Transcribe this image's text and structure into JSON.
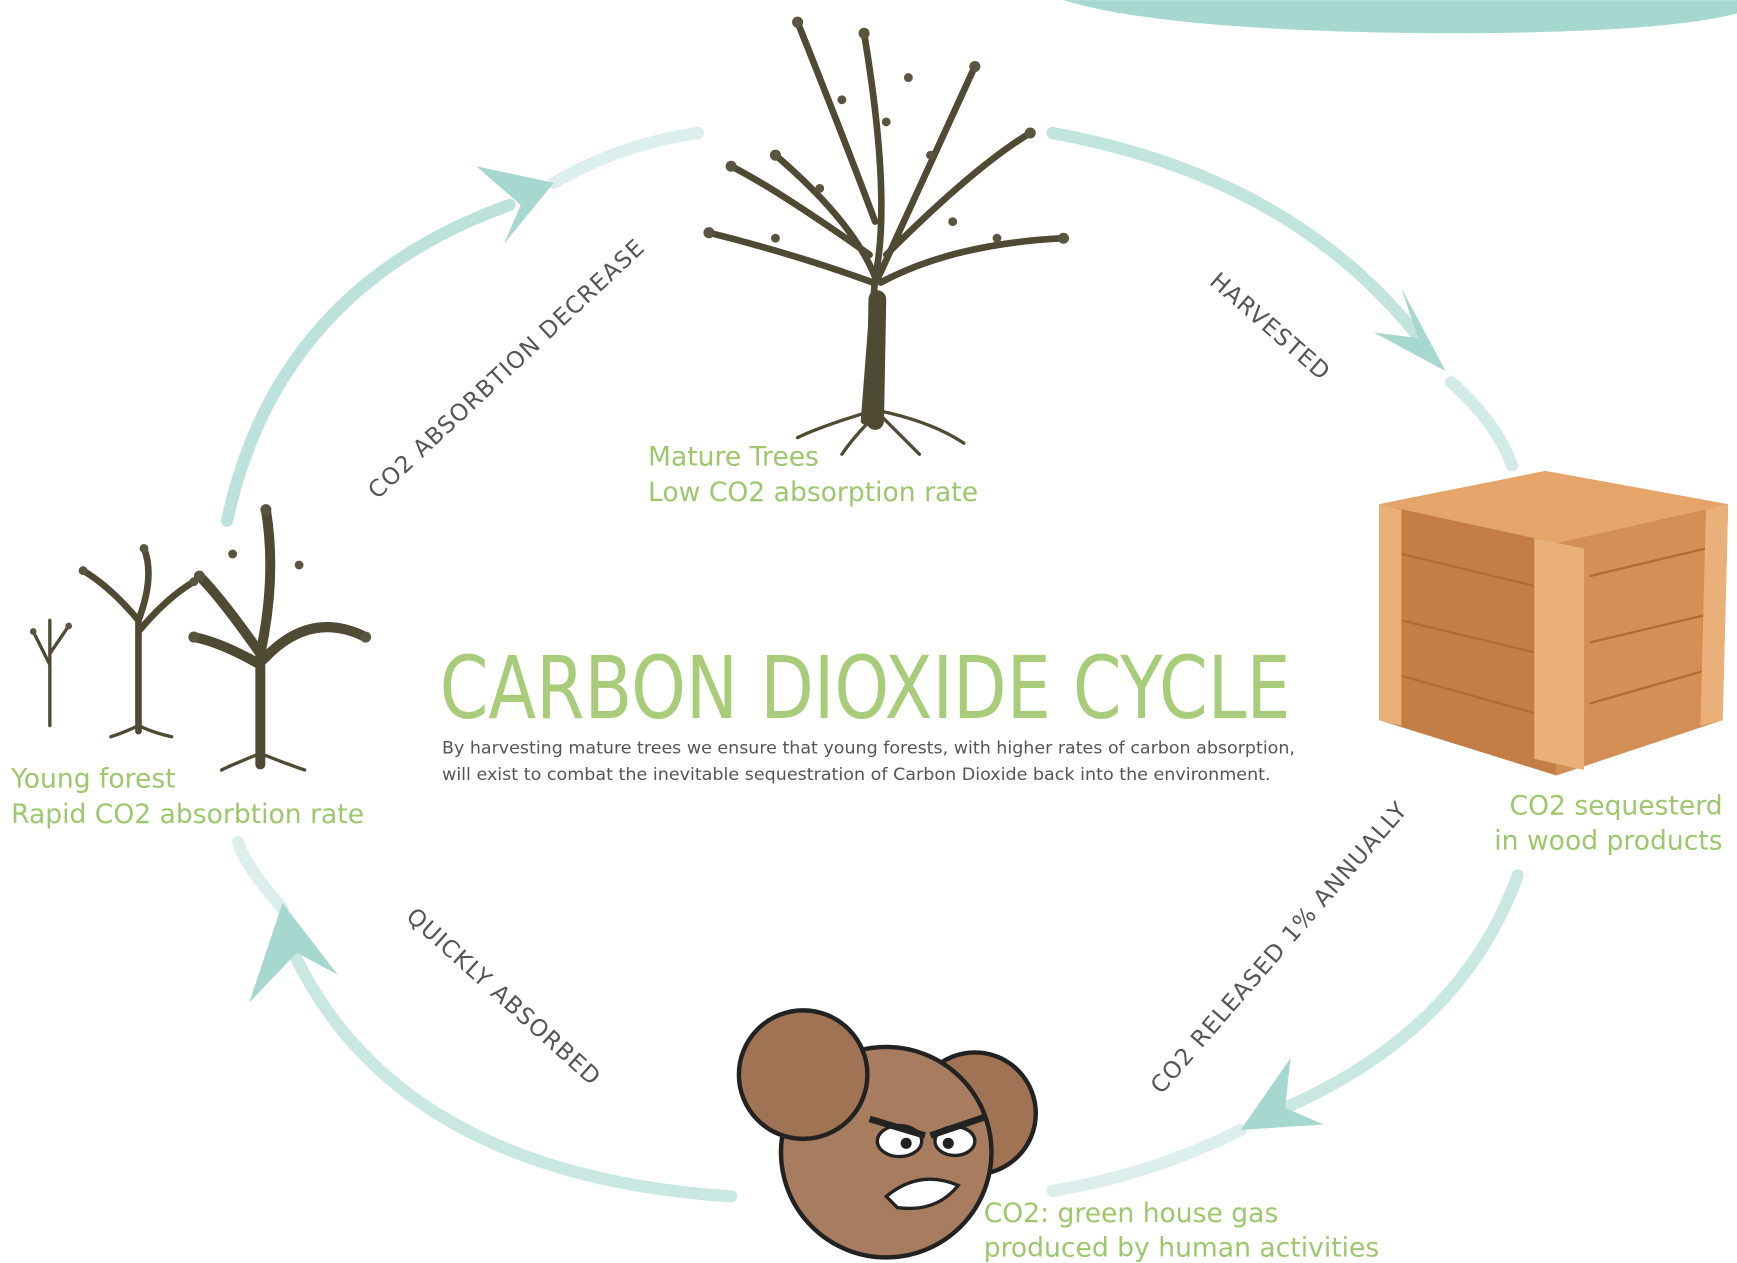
{
  "title": "CARBON DIOXIDE CYCLE",
  "description": [
    "By harvesting mature trees we ensure that young forests, with higher rates of carbon absorption,",
    "will exist to combat the inevitable sequestration of Carbon Dioxide back into the environment."
  ],
  "nodes": [
    {
      "lines": [
        "Mature Trees",
        "Low CO2 absorption rate"
      ]
    },
    {
      "lines": [
        "CO2 sequesterd",
        "in wood products"
      ]
    },
    {
      "lines": [
        "CO2: green house gas",
        "produced by human activities"
      ]
    },
    {
      "lines": [
        "Young forest",
        "Rapid CO2 absorbtion rate"
      ]
    }
  ],
  "arrows": [
    {
      "label": "HARVESTED"
    },
    {
      "label": "CO2 RELEASED 1% ANNUALLY"
    },
    {
      "label": "QUICKLY ABSORBED"
    },
    {
      "label": "CO2 ABSORBTION DECREASE"
    }
  ]
}
